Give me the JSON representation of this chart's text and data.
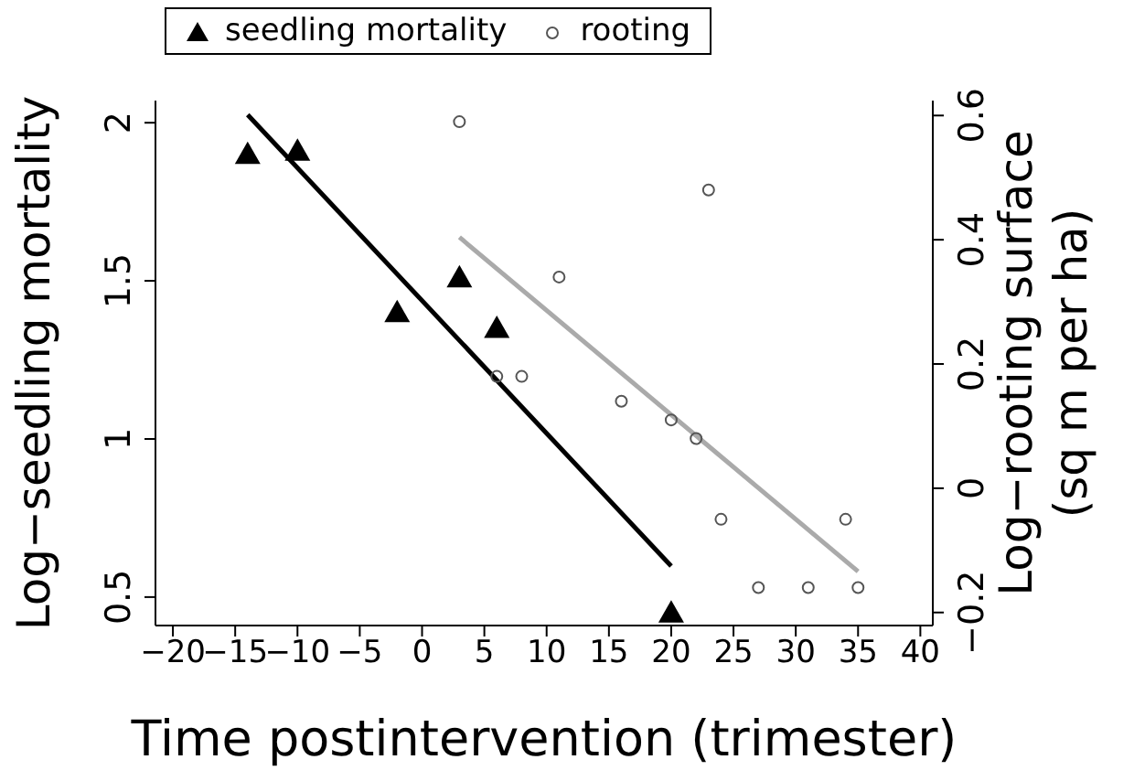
{
  "chart_data": {
    "type": "scatter",
    "xlabel": "Time postintervention (trimester)",
    "ylabel": "Log−seedling mortality",
    "y2label": "Log−rooting surface (sq m per ha)",
    "xlim": [
      -21.4,
      41
    ],
    "xticks": [
      -20,
      -15,
      -10,
      -5,
      0,
      5,
      10,
      15,
      20,
      25,
      30,
      35,
      40
    ],
    "ylim": [
      0.41,
      2.07
    ],
    "yticks": [
      0.5,
      1,
      1.5,
      2
    ],
    "y2lim": [
      -0.221,
      0.624
    ],
    "y2ticks": [
      -0.2,
      0,
      0.2,
      0.4,
      0.6
    ],
    "legend": "top",
    "series": [
      {
        "name": "seedling mortality",
        "marker": "triangle",
        "color": "#000000",
        "x": [
          -14,
          -10,
          -2,
          3,
          6,
          20
        ],
        "values": [
          1.9,
          1.91,
          1.4,
          1.51,
          1.35,
          0.45
        ]
      },
      {
        "name": "rooting",
        "marker": "circle",
        "color": "#555555",
        "axis": "y2",
        "x": [
          3,
          23,
          11,
          6,
          8,
          16,
          20,
          22,
          24,
          34,
          27,
          31,
          35
        ],
        "values": [
          0.59,
          0.48,
          0.34,
          0.18,
          0.18,
          0.14,
          0.11,
          0.08,
          -0.05,
          -0.05,
          -0.16,
          -0.16,
          -0.16
        ]
      },
      {
        "type": "line",
        "color": "#000000",
        "x": [
          -14,
          20
        ],
        "values": [
          2.025,
          0.598
        ]
      },
      {
        "type": "line",
        "color": "#aaaaaa",
        "axis": "y2",
        "x": [
          3,
          35
        ],
        "values": [
          0.404,
          -0.134
        ]
      }
    ]
  }
}
